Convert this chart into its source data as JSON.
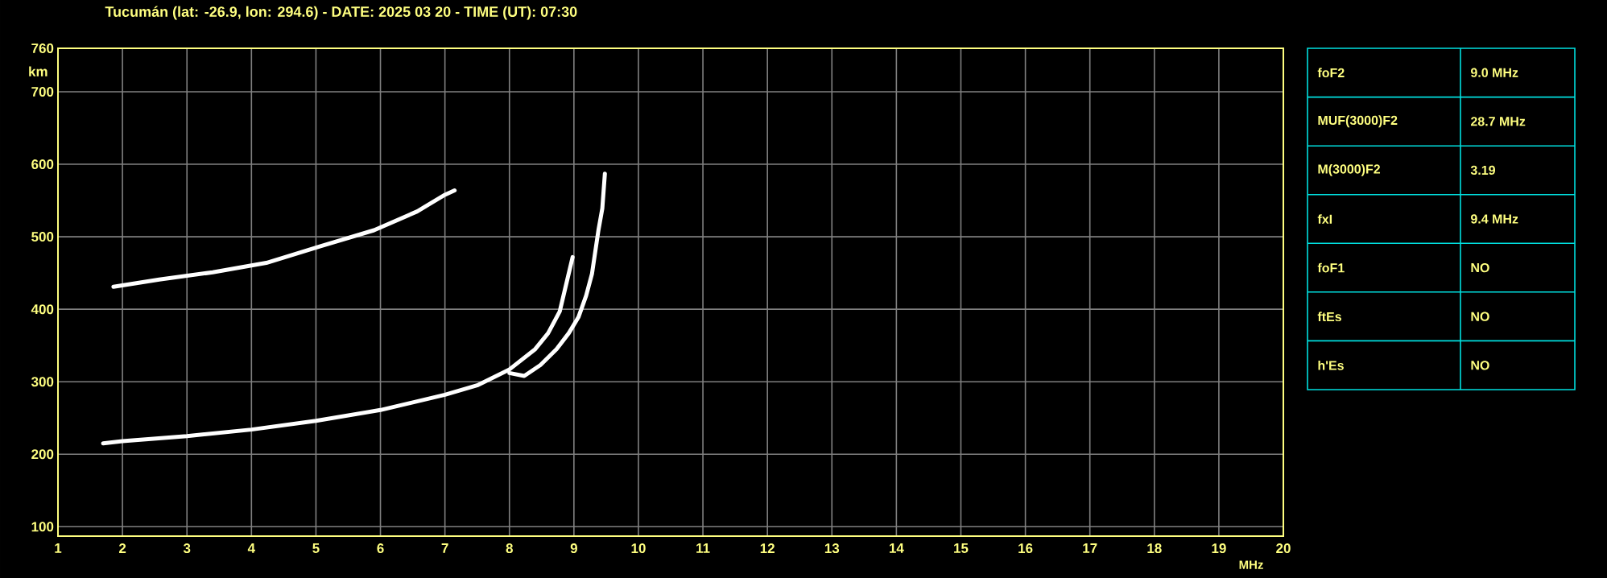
{
  "chart_data": {
    "type": "line",
    "title": "Tucumán (lat: -26.9, lon: 294.6) - DATE: 2025 03 20 - TIME (UT): 07:30",
    "xlabel": "MHz",
    "ylabel": "km",
    "xlim": [
      1,
      20
    ],
    "ylim": [
      87,
      760
    ],
    "xticks": [
      1,
      2,
      3,
      4,
      5,
      6,
      7,
      8,
      9,
      10,
      11,
      12,
      13,
      14,
      15,
      16,
      17,
      18,
      19,
      20
    ],
    "yticks": [
      100,
      200,
      300,
      400,
      500,
      600,
      700,
      760
    ],
    "grid": true,
    "marker": "none",
    "line_style": "solid",
    "series": [
      {
        "color": "#ffffff",
        "x": [
          1.7,
          2,
          3,
          4,
          5,
          6,
          7,
          7.5,
          8,
          8.4,
          8.6,
          8.78,
          8.86,
          8.94,
          8.98
        ],
        "values": [
          215,
          218,
          225,
          234,
          246,
          261,
          282,
          295,
          317,
          345,
          367,
          397,
          427,
          457,
          472
        ]
      },
      {
        "color": "#ffffff",
        "x": [
          8.0,
          8.23,
          8.48,
          8.73,
          8.92,
          9.07,
          9.19,
          9.28,
          9.33,
          9.38,
          9.44,
          9.48
        ],
        "values": [
          312,
          308,
          323,
          345,
          367,
          389,
          419,
          449,
          479,
          509,
          539,
          587
        ]
      },
      {
        "color": "#ffffff",
        "x": [
          1.86,
          2.57,
          3.4,
          4.23,
          5.07,
          5.9,
          6.57,
          6.98,
          7.15
        ],
        "values": [
          431,
          441,
          451,
          464,
          487,
          509,
          535,
          557,
          564
        ]
      }
    ],
    "annotations": [
      "foF2",
      "9.0 MHz",
      "MUF(3000)F2",
      "28.7 MHz",
      "M(3000)F2",
      "3.19",
      "fxI",
      "9.4 MHz",
      "foF1",
      "NO",
      "ftEs",
      "NO",
      "h'Es",
      "NO"
    ]
  }
}
